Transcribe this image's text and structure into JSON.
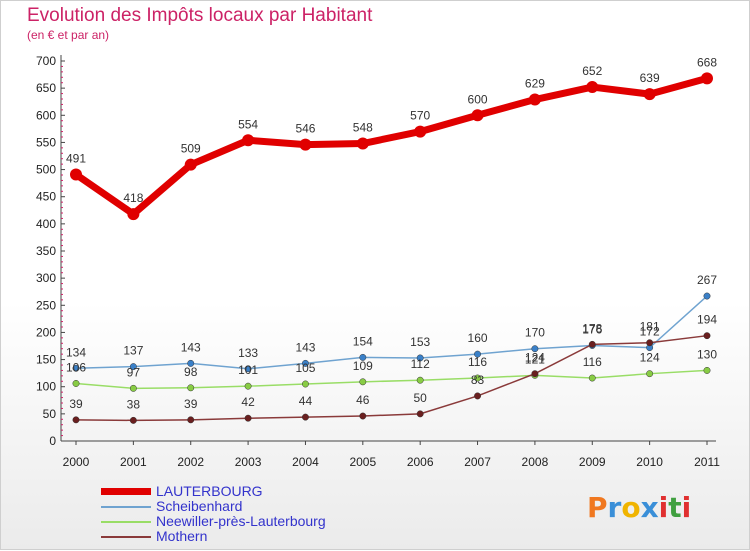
{
  "header": {
    "title": "Evolution des Impôts locaux par Habitant",
    "subtitle": "(en € et par an)"
  },
  "logo": {
    "text": "Proxiti",
    "colors": [
      "#f07820",
      "#3a8fd8",
      "#f0b400",
      "#3a8fd8",
      "#e03030",
      "#40a040",
      "#e03030"
    ]
  },
  "chart_data": {
    "type": "line",
    "title": "Evolution des Impôts locaux par Habitant",
    "subtitle": "(en € et par an)",
    "xlabel": "",
    "ylabel": "",
    "ylim": [
      0,
      700
    ],
    "yticks": [
      "0",
      "50",
      "100",
      "150",
      "200",
      "250",
      "300",
      "350",
      "400",
      "450",
      "500",
      "550",
      "600",
      "650",
      "700"
    ],
    "categories": [
      "2000",
      "2001",
      "2002",
      "2003",
      "2004",
      "2005",
      "2006",
      "2007",
      "2008",
      "2009",
      "2010",
      "2011"
    ],
    "legend_position": "bottom-left",
    "grid": false,
    "series": [
      {
        "name": "LAUTERBOURG",
        "color": "#e00000",
        "thick": true,
        "values": [
          491,
          418,
          509,
          554,
          546,
          548,
          570,
          600,
          629,
          652,
          639,
          668
        ],
        "labels": [
          "491",
          "418",
          "509",
          "554",
          "546",
          "548",
          "570",
          "600",
          "629",
          "652",
          "639",
          "668"
        ]
      },
      {
        "name": "Scheibenhard",
        "color": "#6fa3d0",
        "marker": "#3a80c8",
        "values": [
          134,
          137,
          143,
          133,
          143,
          154,
          153,
          160,
          170,
          176,
          172,
          267
        ],
        "labels": [
          "134",
          "137",
          "143",
          "133",
          "143",
          "154",
          "153",
          "160",
          "170",
          "176",
          "172",
          "267"
        ]
      },
      {
        "name": "Neewiller-près-Lauterbourg",
        "color": "#99dd66",
        "marker": "#88cc44",
        "values": [
          106,
          97,
          98,
          101,
          105,
          109,
          112,
          116,
          121,
          116,
          124,
          130
        ],
        "labels": [
          "106",
          "97",
          "98",
          "101",
          "105",
          "109",
          "112",
          "116",
          "121",
          "116",
          "124",
          "130"
        ]
      },
      {
        "name": "Mothern",
        "color": "#8a3a3a",
        "marker": "#6a1f1f",
        "values": [
          39,
          38,
          39,
          42,
          44,
          46,
          50,
          83,
          124,
          178,
          181,
          194
        ],
        "labels": [
          "39",
          "38",
          "39",
          "42",
          "44",
          "46",
          "50",
          "83",
          "124",
          "178",
          "181",
          "194"
        ]
      }
    ]
  }
}
